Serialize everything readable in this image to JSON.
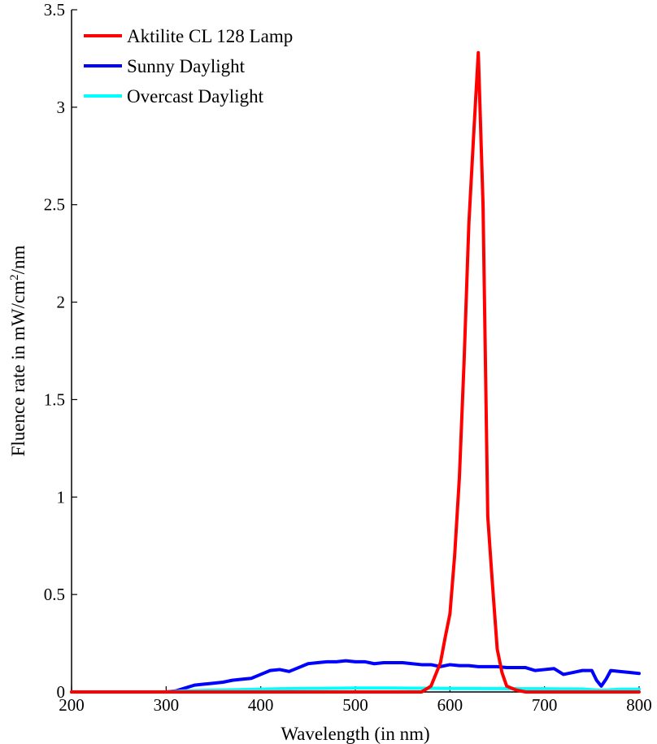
{
  "chart_data": {
    "type": "line",
    "title": "",
    "xlabel": "Wavelength (in nm)",
    "ylabel": {
      "prefix": "Fluence rate in mW/cm",
      "superscript": "2",
      "suffix": "/nm"
    },
    "xlim": [
      200,
      800
    ],
    "ylim": [
      0,
      3.5
    ],
    "xticks": [
      200,
      300,
      400,
      500,
      600,
      700,
      800
    ],
    "yticks": [
      0,
      0.5,
      1,
      1.5,
      2,
      2.5,
      3,
      3.5
    ],
    "xtick_labels": [
      "200",
      "300",
      "400",
      "500",
      "600",
      "700",
      "800"
    ],
    "ytick_labels": [
      "0",
      "0.5",
      "1",
      "1.5",
      "2",
      "2.5",
      "3",
      "3.5"
    ],
    "grid": false,
    "legend_position": "top-left",
    "series": [
      {
        "name": "Aktilite CL 128 Lamp",
        "color": "#ff0000",
        "x": [
          200,
          300,
          400,
          500,
          570,
          580,
          590,
          595,
          600,
          605,
          610,
          615,
          620,
          625,
          630,
          635,
          640,
          645,
          650,
          655,
          660,
          670,
          680,
          700,
          800
        ],
        "y": [
          0,
          0,
          0,
          0,
          0,
          0.03,
          0.15,
          0.28,
          0.4,
          0.7,
          1.1,
          1.7,
          2.4,
          2.85,
          3.28,
          2.5,
          0.9,
          0.55,
          0.22,
          0.1,
          0.03,
          0.01,
          0,
          0,
          0
        ]
      },
      {
        "name": "Sunny Daylight",
        "color": "#0000ff",
        "x": [
          200,
          300,
          310,
          320,
          330,
          340,
          350,
          360,
          370,
          380,
          390,
          400,
          410,
          420,
          430,
          440,
          450,
          460,
          470,
          480,
          490,
          500,
          510,
          520,
          530,
          540,
          550,
          560,
          570,
          580,
          590,
          600,
          610,
          620,
          630,
          640,
          650,
          660,
          670,
          680,
          690,
          700,
          710,
          720,
          730,
          740,
          750,
          755,
          760,
          765,
          770,
          780,
          790,
          800
        ],
        "y": [
          0,
          0,
          0.005,
          0.02,
          0.035,
          0.04,
          0.045,
          0.05,
          0.06,
          0.065,
          0.07,
          0.09,
          0.11,
          0.115,
          0.105,
          0.125,
          0.145,
          0.15,
          0.155,
          0.155,
          0.16,
          0.155,
          0.155,
          0.145,
          0.15,
          0.15,
          0.15,
          0.145,
          0.14,
          0.14,
          0.13,
          0.14,
          0.135,
          0.135,
          0.13,
          0.13,
          0.13,
          0.125,
          0.125,
          0.125,
          0.11,
          0.115,
          0.12,
          0.09,
          0.1,
          0.11,
          0.11,
          0.06,
          0.03,
          0.065,
          0.11,
          0.105,
          0.1,
          0.095
        ]
      },
      {
        "name": "Overcast Daylight",
        "color": "#00ffff",
        "x": [
          200,
          300,
          320,
          340,
          360,
          380,
          400,
          420,
          440,
          460,
          480,
          500,
          520,
          540,
          560,
          580,
          600,
          620,
          640,
          660,
          680,
          700,
          720,
          740,
          760,
          780,
          800
        ],
        "y": [
          0,
          0,
          0.005,
          0.008,
          0.01,
          0.012,
          0.014,
          0.016,
          0.017,
          0.018,
          0.019,
          0.02,
          0.02,
          0.02,
          0.019,
          0.019,
          0.018,
          0.018,
          0.017,
          0.017,
          0.016,
          0.016,
          0.015,
          0.015,
          0.008,
          0.014,
          0.014
        ]
      }
    ]
  }
}
